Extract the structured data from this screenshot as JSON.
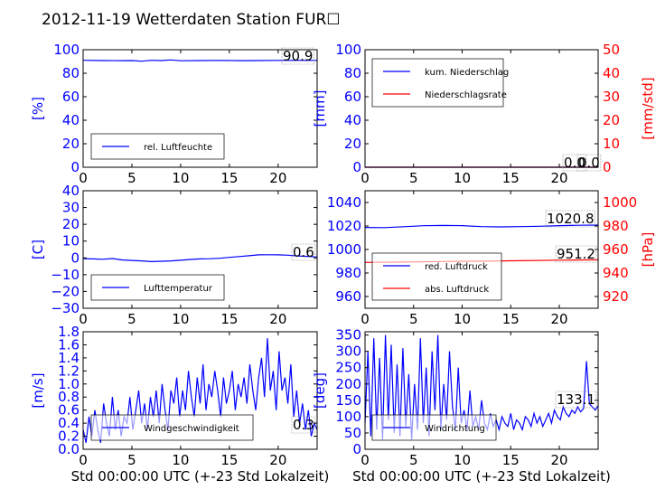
{
  "title": "2012-11-19 Wetterdaten Station FUR☐",
  "colors": {
    "left_axis": "#0000ff",
    "right_axis": "#ff0000",
    "series_blue": "#0000ff",
    "series_red": "#ff0000",
    "series_lightblue": "#8080ff"
  },
  "chart_data": [
    {
      "id": "humidity",
      "type": "line",
      "xlim": [
        0,
        24
      ],
      "xticks": [
        "0",
        "5",
        "10",
        "15",
        "20"
      ],
      "ylim": [
        0,
        100
      ],
      "yticks": [
        "0",
        "20",
        "40",
        "60",
        "80",
        "100"
      ],
      "ylabel": "[%]",
      "legend": [
        "rel. Luftfeuchte"
      ],
      "annotations": [
        "90.9"
      ],
      "series": [
        {
          "name": "rel. Luftfeuchte",
          "axis": "left",
          "color": "blue",
          "x": [
            0,
            2,
            4,
            5,
            6,
            7,
            8,
            9,
            10,
            12,
            14,
            16,
            18,
            20,
            22,
            24
          ],
          "y": [
            91,
            90.8,
            90.7,
            90.8,
            90.2,
            91,
            90.8,
            91.3,
            90.6,
            90.8,
            90.9,
            90.7,
            90.8,
            90.9,
            90.9,
            90.9
          ]
        }
      ]
    },
    {
      "id": "precip",
      "type": "line",
      "xlim": [
        0,
        24
      ],
      "xticks": [
        "0",
        "5",
        "10",
        "15",
        "20"
      ],
      "ylim": [
        0,
        100
      ],
      "yticks": [
        "0",
        "20",
        "40",
        "60",
        "80",
        "100"
      ],
      "ylabel": "[mm]",
      "y2lim": [
        0,
        50
      ],
      "y2ticks": [
        "0",
        "10",
        "20",
        "30",
        "40",
        "50"
      ],
      "y2label": "[mm/std]",
      "legend": [
        "kum. Niederschlag",
        "Niederschlagsrate"
      ],
      "annotations": [
        "0.0",
        "0.0"
      ],
      "series": [
        {
          "name": "kum. Niederschlag",
          "axis": "left",
          "color": "blue",
          "x": [
            0,
            24
          ],
          "y": [
            0,
            0
          ]
        },
        {
          "name": "Niederschlagsrate",
          "axis": "right",
          "color": "red",
          "x": [
            0,
            24
          ],
          "y": [
            0,
            0
          ]
        }
      ]
    },
    {
      "id": "temperature",
      "type": "line",
      "xlim": [
        0,
        24
      ],
      "xticks": [
        "0",
        "5",
        "10",
        "15",
        "20"
      ],
      "ylim": [
        -30,
        40
      ],
      "yticks": [
        "−30",
        "−20",
        "−10",
        "0",
        "10",
        "20",
        "30",
        "40"
      ],
      "ylabel": "[C]",
      "legend": [
        "Lufttemperatur"
      ],
      "annotations": [
        "0.6"
      ],
      "series": [
        {
          "name": "Lufttemperatur",
          "axis": "left",
          "color": "blue",
          "x": [
            0,
            1,
            2,
            3,
            4,
            5,
            6,
            7,
            8,
            9,
            10,
            11,
            12,
            13,
            14,
            15,
            16,
            17,
            18,
            19,
            20,
            21,
            22,
            23,
            24
          ],
          "y": [
            -0.5,
            -0.6,
            -0.8,
            -0.4,
            -1.2,
            -1.5,
            -1.8,
            -2.2,
            -2.0,
            -1.8,
            -1.4,
            -0.9,
            -0.6,
            -0.5,
            -0.2,
            0.3,
            0.8,
            1.3,
            1.8,
            1.9,
            1.8,
            1.6,
            1.2,
            0.9,
            0.6
          ]
        }
      ]
    },
    {
      "id": "pressure",
      "type": "line",
      "xlim": [
        0,
        24
      ],
      "xticks": [
        "0",
        "5",
        "10",
        "15",
        "20"
      ],
      "ylim": [
        950,
        1050
      ],
      "yticks": [
        "960",
        "980",
        "1000",
        "1020",
        "1040"
      ],
      "ylabel": "",
      "y2lim": [
        910,
        1010
      ],
      "y2ticks": [
        "920",
        "940",
        "960",
        "980",
        "1000"
      ],
      "y2label": "[hPa]",
      "legend": [
        "red. Luftdruck",
        "abs. Luftdruck"
      ],
      "annotations": [
        "1020.8",
        "951.2"
      ],
      "series": [
        {
          "name": "red. Luftdruck",
          "axis": "left",
          "color": "blue",
          "x": [
            0,
            2,
            4,
            6,
            8,
            10,
            12,
            14,
            16,
            18,
            20,
            22,
            24
          ],
          "y": [
            1018.8,
            1018.6,
            1019.4,
            1020.2,
            1020.5,
            1020.3,
            1019.5,
            1019.2,
            1019.5,
            1019.8,
            1020.3,
            1020.6,
            1020.8
          ]
        },
        {
          "name": "abs. Luftdruck",
          "axis": "right",
          "color": "red",
          "x": [
            0,
            4,
            8,
            12,
            16,
            20,
            24
          ],
          "y": [
            949.0,
            949.3,
            949.8,
            950.1,
            950.5,
            950.9,
            951.2
          ]
        }
      ]
    },
    {
      "id": "windspeed",
      "type": "line",
      "xlim": [
        0,
        24
      ],
      "xticks": [
        "0",
        "5",
        "10",
        "15",
        "20"
      ],
      "xlabel": "Std 00:00:00 UTC (+-23 Std Lokalzeit)",
      "ylim": [
        0,
        1.8
      ],
      "yticks": [
        "0.0",
        "0.2",
        "0.4",
        "0.6",
        "0.8",
        "1.0",
        "1.2",
        "1.4",
        "1.6",
        "1.8"
      ],
      "ylabel": "[m/s]",
      "legend": [
        "Windgeschwindigkeit"
      ],
      "annotations": [
        "0.3"
      ],
      "series": [
        {
          "name": "Windgeschwindigkeit",
          "axis": "left",
          "color": "blue",
          "x": [
            0,
            0.3,
            0.6,
            0.9,
            1.2,
            1.5,
            1.8,
            2.1,
            2.4,
            2.7,
            3,
            3.3,
            3.6,
            3.9,
            4.2,
            4.5,
            4.8,
            5.1,
            5.4,
            5.7,
            6,
            6.3,
            6.6,
            6.9,
            7.2,
            7.5,
            7.8,
            8.1,
            8.4,
            8.7,
            9,
            9.3,
            9.6,
            9.9,
            10.2,
            10.5,
            10.8,
            11.1,
            11.4,
            11.7,
            12,
            12.3,
            12.6,
            12.9,
            13.2,
            13.5,
            13.8,
            14.1,
            14.4,
            14.7,
            15,
            15.3,
            15.6,
            15.9,
            16.2,
            16.5,
            16.8,
            17.1,
            17.4,
            17.7,
            18,
            18.3,
            18.6,
            18.9,
            19.2,
            19.5,
            19.8,
            20.1,
            20.4,
            20.7,
            21,
            21.3,
            21.6,
            21.9,
            22.2,
            22.5,
            22.8,
            23.1,
            23.4,
            23.7,
            24
          ],
          "y": [
            0.3,
            0.1,
            0.5,
            0.2,
            0.6,
            0.3,
            0.1,
            0.7,
            0.4,
            0.2,
            0.8,
            0.3,
            0.6,
            0.2,
            0.5,
            0.4,
            0.8,
            0.3,
            0.6,
            0.9,
            0.4,
            0.7,
            0.3,
            0.8,
            0.5,
            0.9,
            0.4,
            1.0,
            0.6,
            0.3,
            0.9,
            0.7,
            1.1,
            0.5,
            0.9,
            0.6,
            1.2,
            0.8,
            0.5,
            1.1,
            0.7,
            1.3,
            0.6,
            1.0,
            0.8,
            1.2,
            0.9,
            0.5,
            1.1,
            0.7,
            0.9,
            1.2,
            0.6,
            1.0,
            0.8,
            1.1,
            0.7,
            1.3,
            0.9,
            0.6,
            1.1,
            1.4,
            0.8,
            1.7,
            0.9,
            1.2,
            0.6,
            1.5,
            0.9,
            1.1,
            0.7,
            1.3,
            0.5,
            0.9,
            0.4,
            0.7,
            0.3,
            0.6,
            0.2,
            0.4,
            0.3
          ]
        }
      ]
    },
    {
      "id": "winddir",
      "type": "line",
      "xlim": [
        0,
        24
      ],
      "xticks": [
        "0",
        "5",
        "10",
        "15",
        "20"
      ],
      "xlabel": "Std 00:00:00 UTC (+-23 Std Lokalzeit)",
      "ylim": [
        0,
        360
      ],
      "yticks": [
        "0",
        "50",
        "100",
        "150",
        "200",
        "250",
        "300",
        "350"
      ],
      "ylabel": "[deg]",
      "legend": [
        "Windrichtung"
      ],
      "annotations": [
        "133.1"
      ],
      "series": [
        {
          "name": "Windrichtung",
          "axis": "left",
          "color": "blue",
          "x": [
            0,
            0.3,
            0.6,
            0.9,
            1.2,
            1.5,
            1.8,
            2.1,
            2.4,
            2.7,
            3,
            3.3,
            3.6,
            3.9,
            4.2,
            4.5,
            4.8,
            5.1,
            5.4,
            5.7,
            6,
            6.3,
            6.6,
            6.9,
            7.2,
            7.5,
            7.8,
            8.1,
            8.4,
            8.7,
            9,
            9.3,
            9.6,
            9.9,
            10.2,
            10.5,
            10.8,
            11.1,
            11.4,
            11.7,
            12,
            12.3,
            12.6,
            12.9,
            13.2,
            13.5,
            13.8,
            14.1,
            14.4,
            14.7,
            15,
            15.3,
            15.6,
            15.9,
            16.2,
            16.5,
            16.8,
            17.1,
            17.4,
            17.7,
            18,
            18.3,
            18.6,
            18.9,
            19.2,
            19.5,
            19.8,
            20.1,
            20.4,
            20.7,
            21,
            21.3,
            21.6,
            21.9,
            22.2,
            22.5,
            22.8,
            23.1,
            23.4,
            23.7,
            24
          ],
          "y": [
            80,
            300,
            40,
            340,
            60,
            280,
            30,
            350,
            90,
            320,
            50,
            260,
            40,
            310,
            70,
            230,
            30,
            200,
            60,
            340,
            80,
            250,
            40,
            300,
            120,
            350,
            60,
            200,
            90,
            300,
            130,
            60,
            250,
            80,
            120,
            60,
            180,
            70,
            100,
            60,
            150,
            80,
            60,
            110,
            70,
            90,
            60,
            100,
            80,
            70,
            110,
            60,
            90,
            80,
            60,
            100,
            90,
            70,
            110,
            80,
            100,
            70,
            90,
            110,
            80,
            120,
            100,
            90,
            130,
            110,
            100,
            120,
            110,
            130,
            115,
            125,
            270,
            140,
            130,
            120,
            133
          ]
        }
      ]
    }
  ]
}
